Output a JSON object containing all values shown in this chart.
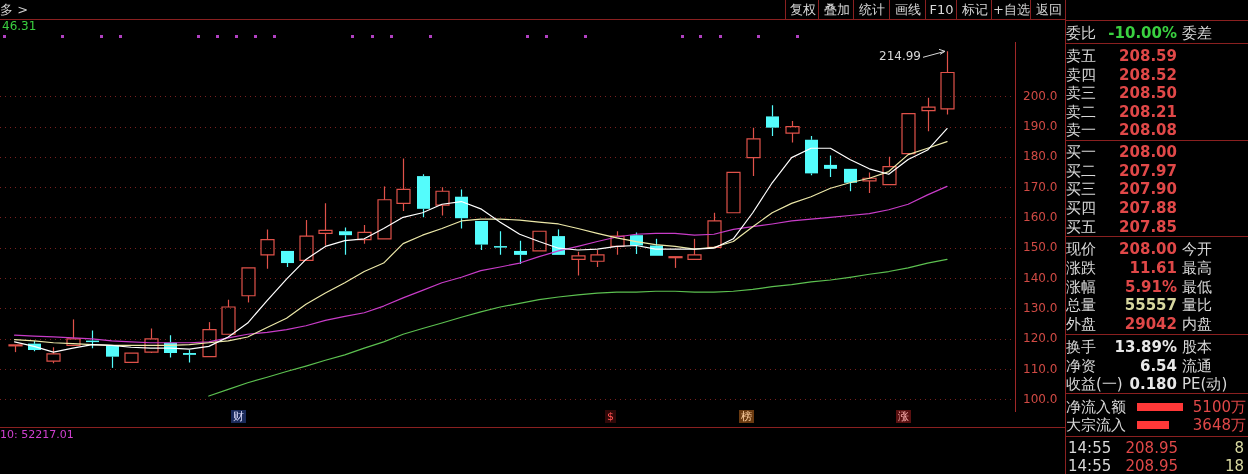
{
  "chart_data": {
    "type": "candlestick",
    "categories": [
      null,
      null,
      null,
      null,
      null,
      null,
      null,
      null,
      null,
      null,
      null,
      null,
      null,
      null,
      null,
      null,
      null,
      null,
      null,
      null,
      null,
      null,
      null,
      null,
      null,
      null,
      null,
      null,
      null,
      null,
      null,
      null,
      null,
      null,
      null,
      null,
      null,
      null,
      null,
      null,
      null,
      null,
      null,
      null,
      null,
      null,
      null,
      null,
      null
    ],
    "ohlc": [
      [
        118.0,
        118.1,
        115.7,
        118.1
      ],
      [
        118.5,
        119.4,
        116.0,
        116.4
      ],
      [
        112.7,
        117.3,
        112.0,
        115.1
      ],
      [
        117.9,
        126.5,
        117.9,
        120.1
      ],
      [
        119.5,
        122.8,
        117.0,
        119.3
      ],
      [
        117.9,
        117.9,
        110.5,
        114.2
      ],
      [
        112.3,
        115.4,
        112.3,
        115.4
      ],
      [
        115.7,
        123.5,
        115.4,
        120.1
      ],
      [
        118.8,
        121.3,
        113.9,
        115.4
      ],
      [
        115.4,
        116.4,
        112.3,
        114.8
      ],
      [
        114.2,
        125.6,
        114.2,
        123.1
      ],
      [
        121.6,
        133.0,
        121.6,
        130.6
      ],
      [
        134.3,
        143.5,
        132.1,
        143.5
      ],
      [
        147.8,
        156.2,
        143.2,
        152.8
      ],
      [
        149.1,
        149.1,
        143.8,
        145.1
      ],
      [
        146.0,
        159.3,
        146.0,
        154.0
      ],
      [
        154.9,
        164.8,
        150.9,
        155.9
      ],
      [
        155.6,
        156.8,
        147.8,
        154.3
      ],
      [
        152.8,
        157.7,
        151.5,
        155.2
      ],
      [
        153.1,
        170.4,
        153.1,
        166.0
      ],
      [
        164.8,
        179.6,
        162.3,
        169.4
      ],
      [
        173.8,
        174.4,
        160.2,
        163.0
      ],
      [
        164.2,
        170.1,
        160.8,
        168.8
      ],
      [
        167.0,
        169.4,
        156.5,
        159.9
      ],
      [
        159.0,
        159.0,
        149.4,
        151.2
      ],
      [
        150.7,
        155.6,
        147.8,
        150.6
      ],
      [
        149.1,
        152.5,
        144.8,
        147.8
      ],
      [
        149.1,
        155.6,
        149.1,
        155.6
      ],
      [
        154.0,
        156.2,
        147.8,
        147.8
      ],
      [
        146.3,
        148.8,
        141.0,
        147.5
      ],
      [
        145.7,
        149.4,
        143.8,
        147.8
      ],
      [
        150.6,
        155.6,
        147.8,
        154.0
      ],
      [
        154.3,
        155.2,
        148.1,
        150.9
      ],
      [
        150.9,
        153.1,
        147.5,
        147.5
      ],
      [
        146.9,
        147.2,
        143.5,
        147.2
      ],
      [
        146.3,
        153.1,
        146.3,
        147.8
      ],
      [
        150.3,
        161.7,
        150.3,
        159.0
      ],
      [
        161.7,
        175.0,
        161.7,
        175.0
      ],
      [
        179.9,
        189.8,
        173.8,
        186.1
      ],
      [
        193.5,
        197.2,
        187.0,
        189.8
      ],
      [
        188.0,
        192.0,
        184.9,
        190.1
      ],
      [
        185.8,
        187.0,
        174.1,
        174.7
      ],
      [
        177.5,
        180.6,
        173.5,
        176.2
      ],
      [
        176.2,
        176.2,
        168.8,
        171.6
      ],
      [
        172.2,
        175.0,
        168.2,
        173.1
      ],
      [
        171.0,
        180.2,
        171.0,
        176.9
      ],
      [
        181.2,
        194.4,
        181.2,
        194.4
      ],
      [
        195.4,
        199.7,
        188.6,
        196.6
      ],
      [
        196.0,
        214.99,
        194.1,
        208.0
      ]
    ],
    "colors": [
      "#e0524a",
      "#54fcfc",
      "#e0524a",
      "#e0524a",
      "#54fcfc",
      "#54fcfc",
      "#e0524a",
      "#e0524a",
      "#54fcfc",
      "#54fcfc",
      "#e0524a",
      "#e0524a",
      "#e0524a",
      "#e0524a",
      "#54fcfc",
      "#e0524a",
      "#e0524a",
      "#54fcfc",
      "#e0524a",
      "#e0524a",
      "#e0524a",
      "#54fcfc",
      "#e0524a",
      "#54fcfc",
      "#54fcfc",
      "#54fcfc",
      "#54fcfc",
      "#e0524a",
      "#54fcfc",
      "#e0524a",
      "#e0524a",
      "#e0524a",
      "#54fcfc",
      "#54fcfc",
      "#e0524a",
      "#e0524a",
      "#e0524a",
      "#e0524a",
      "#e0524a",
      "#54fcfc",
      "#e0524a",
      "#54fcfc",
      "#54fcfc",
      "#54fcfc",
      "#e0524a",
      "#e0524a",
      "#e0524a",
      "#e0524a",
      "#e0524a"
    ],
    "series": [
      {
        "type": "line",
        "color": "#ffffff",
        "values": [
          119.1,
          117.6,
          115.7,
          117.0,
          118.2,
          117.9,
          117.3,
          117.0,
          117.0,
          116.7,
          117.6,
          120.7,
          125.3,
          132.7,
          139.8,
          146.3,
          150.6,
          152.5,
          153.1,
          156.5,
          160.2,
          161.7,
          164.5,
          165.4,
          163.0,
          158.6,
          154.6,
          152.2,
          150.0,
          149.4,
          149.7,
          150.6,
          150.9,
          149.7,
          149.7,
          149.7,
          150.0,
          153.1,
          161.7,
          171.6,
          179.9,
          183.0,
          183.0,
          179.3,
          176.2,
          174.4,
          179.3,
          182.4,
          189.5
        ]
      },
      {
        "type": "line",
        "color": "#ece8a8",
        "values": [
          119.8,
          119.4,
          118.8,
          118.5,
          118.2,
          117.9,
          117.9,
          117.9,
          117.9,
          118.2,
          118.8,
          119.4,
          120.7,
          123.8,
          126.9,
          131.5,
          135.2,
          138.6,
          142.3,
          145.1,
          151.5,
          154.3,
          156.5,
          159.0,
          159.6,
          159.6,
          159.3,
          158.6,
          158.0,
          156.5,
          154.9,
          153.4,
          152.2,
          151.2,
          150.6,
          149.7,
          150.3,
          152.2,
          157.1,
          161.7,
          164.8,
          167.0,
          169.8,
          171.6,
          173.1,
          175.3,
          180.9,
          183.0,
          185.2
        ]
      },
      {
        "type": "line",
        "color": "#c83cc8",
        "values": [
          121.3,
          121.0,
          120.7,
          120.4,
          120.1,
          119.4,
          119.1,
          118.8,
          118.8,
          118.8,
          119.1,
          120.4,
          121.6,
          122.2,
          123.1,
          124.4,
          126.2,
          127.5,
          128.7,
          130.9,
          133.6,
          136.1,
          138.6,
          140.4,
          142.6,
          143.8,
          145.1,
          147.2,
          149.1,
          150.6,
          152.2,
          153.7,
          154.6,
          154.9,
          154.9,
          154.3,
          154.6,
          156.2,
          157.1,
          158.0,
          159.0,
          159.6,
          160.2,
          160.8,
          161.4,
          162.7,
          164.5,
          167.6,
          170.4
        ]
      },
      {
        "type": "line",
        "color": "#5cc050",
        "values": [
          null,
          null,
          null,
          null,
          null,
          null,
          null,
          null,
          null,
          null,
          101.2,
          103.4,
          105.6,
          107.4,
          109.3,
          111.1,
          113.0,
          114.8,
          117.0,
          119.1,
          121.6,
          123.5,
          125.3,
          127.2,
          129.0,
          130.6,
          131.8,
          133.0,
          133.9,
          134.6,
          135.2,
          135.5,
          135.5,
          135.8,
          135.8,
          135.5,
          135.5,
          135.8,
          136.4,
          137.3,
          138.0,
          138.9,
          139.5,
          140.4,
          141.4,
          142.3,
          143.5,
          145.1,
          146.3
        ]
      }
    ],
    "ylim": [
      96,
      218
    ],
    "yticks": [
      {
        "value": 100,
        "label": "100.0"
      },
      {
        "value": 110,
        "label": "110.0"
      },
      {
        "value": 120,
        "label": "120.0"
      },
      {
        "value": 130,
        "label": "130.0"
      },
      {
        "value": 140,
        "label": "140.0"
      },
      {
        "value": 150,
        "label": "150.0"
      },
      {
        "value": 160,
        "label": "160.0"
      },
      {
        "value": 170,
        "label": "170.0"
      },
      {
        "value": 180,
        "label": "180.0"
      },
      {
        "value": 190,
        "label": "190.0"
      },
      {
        "value": 200,
        "label": "200.0"
      }
    ],
    "grid": "y",
    "tick_labels": "y",
    "annotations": [
      "214.99",
      "多 >",
      "复权",
      "叠加",
      "统计",
      "画线",
      "F10",
      "标记",
      "+自选",
      "返回",
      "46.31",
      "财",
      "$",
      "榜",
      "涨",
      "10: 52217.01",
      "委比",
      "-10.00%",
      "委差",
      "卖五",
      "208.59",
      "卖四",
      "208.52",
      "卖三",
      "208.50",
      "卖二",
      "208.21",
      "卖一",
      "208.08",
      "买一",
      "208.00",
      "买二",
      "207.97",
      "买三",
      "207.90",
      "买四",
      "207.88",
      "买五",
      "207.85",
      "现价",
      "208.00",
      "今开",
      "涨跌",
      "11.61",
      "最高",
      "涨幅",
      "5.91%",
      "最低",
      "总量",
      "55557",
      "量比",
      "外盘",
      "29042",
      "内盘",
      "换手",
      "13.89%",
      "股本",
      "净资",
      "6.54",
      "流通",
      "收益(一)",
      "0.180",
      "PE(动)",
      "净流入额",
      "5100万",
      "大宗流入",
      "3648万",
      "14:55",
      "208.95",
      "8",
      "14:55",
      "208.95",
      "18"
    ]
  }
}
